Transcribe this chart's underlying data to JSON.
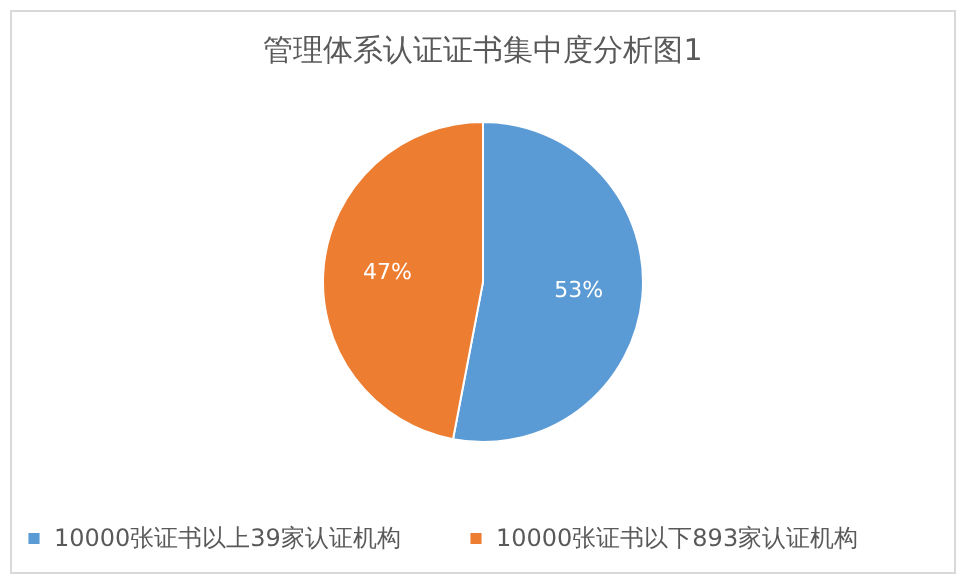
{
  "chart_data": {
    "type": "pie",
    "title": "管理体系认证证书集中度分析图1",
    "categories": [
      "10000张证书以上39家认证机构",
      "10000张证书以下893家认证机构"
    ],
    "values": [
      53,
      47
    ],
    "colors": [
      "#5b9bd5",
      "#ed7d31"
    ],
    "value_labels": [
      "53%",
      "47%"
    ],
    "legend": "bottom"
  }
}
